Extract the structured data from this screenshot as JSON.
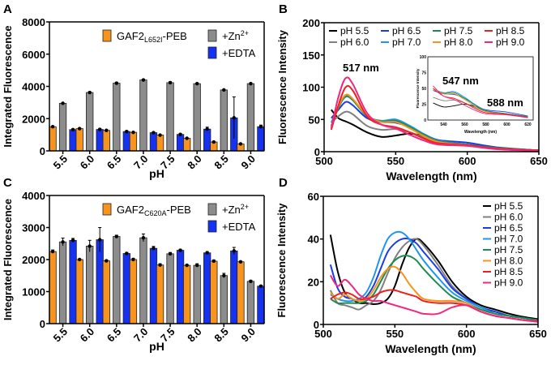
{
  "chart_data": [
    {
      "panel": "A",
      "type": "bar",
      "title": "",
      "xlabel": "pH",
      "ylabel": "Integrated Fluorescence",
      "ylim": [
        0,
        8000
      ],
      "yticks": [
        "0",
        "2000",
        "4000",
        "6000",
        "8000"
      ],
      "categories": [
        "5.5",
        "6.0",
        "6.5",
        "7.0",
        "7.5",
        "8.0",
        "8.5",
        "9.0"
      ],
      "legend_position": "top-right",
      "series": [
        {
          "name": "GAF2",
          "sub": "L652I",
          "suffix": "-PEB",
          "color": "#F7941D",
          "values": [
            1500,
            1380,
            1270,
            1150,
            980,
            780,
            550,
            430
          ],
          "errors": [
            40,
            40,
            40,
            30,
            30,
            30,
            30,
            30
          ]
        },
        {
          "name": "+Zn",
          "sup": "2+",
          "color": "#8C8C8C",
          "values": [
            2950,
            3620,
            4200,
            4400,
            4230,
            4170,
            3780,
            4170
          ],
          "errors": [
            40,
            40,
            60,
            40,
            60,
            40,
            40,
            40
          ]
        },
        {
          "name": "+EDTA",
          "color": "#1432F0",
          "values": [
            1320,
            1330,
            1200,
            1130,
            1020,
            1350,
            2050,
            1500
          ],
          "errors": [
            40,
            60,
            50,
            40,
            40,
            120,
            1300,
            100
          ]
        }
      ]
    },
    {
      "panel": "B",
      "type": "line",
      "xlabel": "Wavelength (nm)",
      "ylabel": "Fluorescence Intensity",
      "xlim": [
        500,
        650
      ],
      "ylim": [
        0,
        200
      ],
      "xticks": [
        "500",
        "550",
        "600",
        "650"
      ],
      "yticks": [
        "0",
        "50",
        "100",
        "150",
        "200"
      ],
      "annotations": [
        "517 nm"
      ],
      "legend_position": "top",
      "series": [
        {
          "name": "pH 5.5",
          "color": "#000000",
          "x": [
            505,
            510,
            515,
            520,
            530,
            540,
            550,
            560,
            570,
            580,
            600,
            620,
            650
          ],
          "y": [
            65,
            52,
            47,
            42,
            30,
            23,
            25,
            28,
            24,
            16,
            11,
            6,
            2
          ]
        },
        {
          "name": "pH 6.0",
          "color": "#808080",
          "x": [
            505,
            510,
            515,
            520,
            530,
            540,
            550,
            560,
            570,
            580,
            600,
            620,
            650
          ],
          "y": [
            45,
            55,
            62,
            58,
            40,
            34,
            35,
            30,
            22,
            15,
            10,
            5,
            2
          ]
        },
        {
          "name": "pH 6.5",
          "color": "#1E3CE6",
          "x": [
            505,
            510,
            515,
            520,
            530,
            540,
            550,
            560,
            570,
            580,
            600,
            620,
            650
          ],
          "y": [
            52,
            65,
            77,
            72,
            52,
            46,
            45,
            38,
            27,
            18,
            14,
            7,
            2
          ]
        },
        {
          "name": "pH 7.0",
          "color": "#1E96F0",
          "x": [
            505,
            510,
            515,
            520,
            530,
            540,
            550,
            560,
            570,
            580,
            600,
            620,
            650
          ],
          "y": [
            45,
            70,
            85,
            80,
            55,
            48,
            50,
            40,
            27,
            17,
            11,
            6,
            2
          ]
        },
        {
          "name": "pH 7.5",
          "color": "#1E8C50",
          "x": [
            505,
            510,
            515,
            520,
            530,
            540,
            550,
            560,
            570,
            580,
            600,
            620,
            650
          ],
          "y": [
            40,
            68,
            86,
            80,
            55,
            47,
            48,
            38,
            26,
            16,
            11,
            6,
            2
          ]
        },
        {
          "name": "pH 8.0",
          "color": "#F7941D",
          "x": [
            505,
            510,
            515,
            520,
            530,
            540,
            550,
            560,
            570,
            580,
            600,
            620,
            650
          ],
          "y": [
            38,
            70,
            88,
            82,
            56,
            46,
            46,
            36,
            24,
            15,
            10,
            5,
            2
          ]
        },
        {
          "name": "pH 8.5",
          "color": "#EE2020",
          "x": [
            505,
            510,
            515,
            520,
            530,
            540,
            550,
            560,
            570,
            580,
            600,
            620,
            650
          ],
          "y": [
            34,
            72,
            100,
            95,
            55,
            42,
            38,
            30,
            20,
            13,
            10,
            5,
            2
          ]
        },
        {
          "name": "pH 9.0",
          "color": "#F02882",
          "x": [
            505,
            510,
            515,
            520,
            530,
            540,
            550,
            560,
            570,
            580,
            600,
            620,
            650
          ],
          "y": [
            36,
            85,
            114,
            105,
            60,
            42,
            36,
            26,
            17,
            11,
            9,
            4,
            1
          ]
        }
      ],
      "inset": {
        "xlabel": "Wavelength (nm)",
        "ylabel": "Fluorescence Intensity",
        "xlim": [
          525,
          625
        ],
        "ylim": [
          0,
          100
        ],
        "xticks": [
          "540",
          "560",
          "580",
          "600",
          "620"
        ],
        "yticks": [
          "0",
          "25",
          "50",
          "75",
          "100"
        ],
        "annotations": [
          "547 nm",
          "588 nm"
        ]
      }
    },
    {
      "panel": "C",
      "type": "bar",
      "xlabel": "pH",
      "ylabel": "Integrated Fluorescence",
      "ylim": [
        0,
        4000
      ],
      "yticks": [
        "0",
        "1000",
        "2000",
        "3000",
        "4000"
      ],
      "categories": [
        "5.5",
        "6.0",
        "6.5",
        "7.0",
        "7.5",
        "8.0",
        "8.5",
        "9.0"
      ],
      "legend_position": "top-right",
      "series": [
        {
          "name": "GAF2",
          "sub": "C620A",
          "suffix": "-PEB",
          "color": "#F7941D",
          "values": [
            2250,
            2000,
            1960,
            2000,
            1830,
            1820,
            1950,
            1930
          ],
          "errors": [
            50,
            20,
            30,
            40,
            40,
            20,
            40,
            20
          ]
        },
        {
          "name": "+Zn",
          "sup": "2+",
          "color": "#8C8C8C",
          "values": [
            2550,
            2420,
            2720,
            2680,
            2180,
            1820,
            1500,
            1320
          ],
          "errors": [
            120,
            180,
            40,
            120,
            40,
            50,
            70,
            30
          ]
        },
        {
          "name": "+EDTA",
          "color": "#1432F0",
          "values": [
            2600,
            2620,
            2190,
            2350,
            2290,
            2210,
            2270,
            1170
          ],
          "errors": [
            60,
            380,
            30,
            60,
            30,
            40,
            110,
            30
          ]
        }
      ]
    },
    {
      "panel": "D",
      "type": "line",
      "xlabel": "Wavelength (nm)",
      "ylabel": "Fluorescence Intensity",
      "xlim": [
        500,
        650
      ],
      "ylim": [
        0,
        60
      ],
      "xticks": [
        "500",
        "550",
        "600",
        "650"
      ],
      "yticks": [
        "0",
        "20",
        "40",
        "60"
      ],
      "legend_position": "top-right",
      "series": [
        {
          "name": "pH 5.5",
          "color": "#000000",
          "x": [
            505,
            510,
            515,
            520,
            525,
            530,
            535,
            540,
            545,
            550,
            555,
            560,
            565,
            570,
            580,
            590,
            600,
            610,
            620,
            630,
            640,
            650
          ],
          "y": [
            42,
            25,
            15,
            12,
            10,
            10,
            9.5,
            10,
            12,
            18,
            28,
            36,
            40,
            38,
            30,
            20,
            13,
            9,
            7,
            5,
            3.5,
            2.5
          ]
        },
        {
          "name": "pH 6.0",
          "color": "#808080",
          "x": [
            505,
            510,
            515,
            520,
            525,
            530,
            535,
            540,
            545,
            550,
            555,
            560,
            565,
            570,
            580,
            590,
            600,
            610,
            620,
            630,
            640,
            650
          ],
          "y": [
            16,
            10,
            9,
            8,
            7,
            9,
            11,
            16,
            24,
            31,
            36,
            39,
            40,
            37,
            28,
            18,
            12,
            8,
            6,
            4,
            3,
            2
          ]
        },
        {
          "name": "pH 6.5",
          "color": "#1E3CE6",
          "x": [
            505,
            510,
            515,
            520,
            525,
            530,
            535,
            540,
            545,
            550,
            555,
            560,
            565,
            570,
            580,
            590,
            600,
            610,
            620,
            630,
            640,
            650
          ],
          "y": [
            28,
            17,
            13,
            12,
            11,
            13,
            18,
            26,
            34,
            38,
            40,
            40,
            38,
            34,
            26,
            17,
            12,
            8,
            6,
            4,
            3,
            2
          ]
        },
        {
          "name": "pH 7.0",
          "color": "#1E96F0",
          "x": [
            505,
            510,
            515,
            520,
            525,
            530,
            535,
            540,
            545,
            550,
            555,
            560,
            565,
            570,
            580,
            590,
            600,
            610,
            620,
            630,
            640,
            650
          ],
          "y": [
            14,
            12,
            11,
            11,
            12,
            15,
            22,
            32,
            40,
            43,
            43,
            40,
            35,
            30,
            22,
            15,
            11,
            8,
            5,
            4,
            3,
            2
          ]
        },
        {
          "name": "pH 7.5",
          "color": "#1E8C50",
          "x": [
            505,
            510,
            515,
            520,
            525,
            530,
            535,
            540,
            545,
            550,
            555,
            560,
            565,
            570,
            580,
            590,
            600,
            610,
            620,
            630,
            640,
            650
          ],
          "y": [
            12,
            10,
            10,
            10,
            10,
            11,
            14,
            20,
            26,
            30,
            32,
            32,
            30,
            26,
            19,
            13,
            10,
            7,
            5,
            4,
            3,
            2
          ]
        },
        {
          "name": "pH 8.0",
          "color": "#F7941D",
          "x": [
            505,
            510,
            515,
            520,
            525,
            530,
            535,
            540,
            545,
            550,
            555,
            560,
            565,
            570,
            580,
            590,
            600,
            610,
            620,
            630,
            640,
            650
          ],
          "y": [
            15,
            12,
            14,
            12,
            11,
            12,
            16,
            22,
            26,
            27,
            24,
            19,
            15,
            12,
            11,
            11,
            10,
            6,
            4,
            3,
            2,
            1.5
          ]
        },
        {
          "name": "pH 8.5",
          "color": "#EE2020",
          "x": [
            505,
            510,
            515,
            520,
            525,
            530,
            535,
            540,
            545,
            550,
            555,
            560,
            565,
            570,
            580,
            590,
            600,
            610,
            620,
            630,
            640,
            650
          ],
          "y": [
            12,
            14,
            15,
            14,
            12,
            12,
            13,
            15,
            16,
            16,
            15,
            14,
            13,
            11,
            10,
            10,
            9,
            6,
            4,
            3,
            2,
            1.5
          ]
        },
        {
          "name": "pH 9.0",
          "color": "#F02882",
          "x": [
            505,
            510,
            515,
            520,
            525,
            530,
            535,
            540,
            545,
            550,
            555,
            560,
            565,
            570,
            580,
            590,
            600,
            610,
            620,
            630,
            640,
            650
          ],
          "y": [
            23,
            18,
            21,
            18,
            14,
            12,
            11,
            11,
            10,
            9,
            8,
            7,
            6,
            5,
            5,
            8,
            9,
            6,
            4,
            3,
            2,
            1.2
          ]
        }
      ]
    }
  ],
  "panel_labels": [
    "A",
    "B",
    "C",
    "D"
  ]
}
